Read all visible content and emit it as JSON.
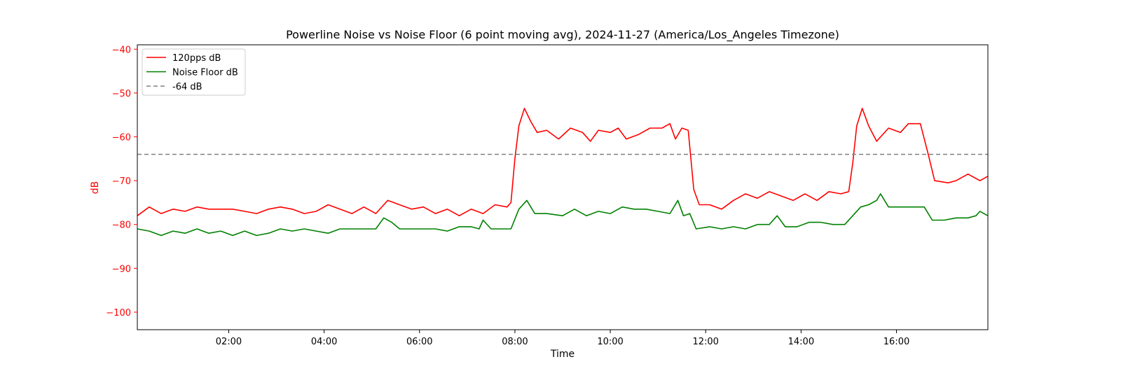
{
  "chart_data": {
    "type": "line",
    "title": "Powerline Noise vs Noise Floor (6 point moving avg), 2024-11-27 (America/Los_Angeles Timezone)",
    "xlabel": "Time",
    "ylabel": "dB",
    "xlim": [
      "00:05",
      "17:55"
    ],
    "ylim": [
      -104,
      -39
    ],
    "x_ticks": [
      "02:00",
      "04:00",
      "06:00",
      "08:00",
      "10:00",
      "12:00",
      "14:00",
      "16:00"
    ],
    "y_ticks": [
      "−40",
      "−50",
      "−60",
      "−70",
      "−80",
      "−90",
      "−100"
    ],
    "grid": false,
    "legend_position": "top-left",
    "colors": {
      "axis_y": "#ff0000",
      "threshold": "#808080"
    },
    "series": [
      {
        "name": "120pps dB",
        "color": "#ff0000",
        "style": "solid",
        "points": [
          [
            "00:05",
            -78.0
          ],
          [
            "00:20",
            -76.0
          ],
          [
            "00:35",
            -77.5
          ],
          [
            "00:50",
            -76.5
          ],
          [
            "01:05",
            -77.0
          ],
          [
            "01:20",
            -76.0
          ],
          [
            "01:35",
            -76.5
          ],
          [
            "01:50",
            -76.5
          ],
          [
            "02:05",
            -76.5
          ],
          [
            "02:20",
            -77.0
          ],
          [
            "02:35",
            -77.5
          ],
          [
            "02:50",
            -76.5
          ],
          [
            "03:05",
            -76.0
          ],
          [
            "03:20",
            -76.5
          ],
          [
            "03:35",
            -77.5
          ],
          [
            "03:50",
            -77.0
          ],
          [
            "04:05",
            -75.5
          ],
          [
            "04:20",
            -76.5
          ],
          [
            "04:35",
            -77.5
          ],
          [
            "04:50",
            -76.0
          ],
          [
            "05:05",
            -77.5
          ],
          [
            "05:20",
            -74.5
          ],
          [
            "05:35",
            -75.5
          ],
          [
            "05:50",
            -76.5
          ],
          [
            "06:05",
            -76.0
          ],
          [
            "06:20",
            -77.5
          ],
          [
            "06:35",
            -76.5
          ],
          [
            "06:50",
            -78.0
          ],
          [
            "07:05",
            -76.5
          ],
          [
            "07:20",
            -77.5
          ],
          [
            "07:35",
            -75.5
          ],
          [
            "07:50",
            -76.0
          ],
          [
            "07:55",
            -75.0
          ],
          [
            "08:00",
            -65.0
          ],
          [
            "08:05",
            -57.5
          ],
          [
            "08:12",
            -53.5
          ],
          [
            "08:20",
            -56.5
          ],
          [
            "08:28",
            -59.0
          ],
          [
            "08:40",
            -58.5
          ],
          [
            "08:55",
            -60.5
          ],
          [
            "09:10",
            -58.0
          ],
          [
            "09:25",
            -59.0
          ],
          [
            "09:35",
            -61.0
          ],
          [
            "09:45",
            -58.5
          ],
          [
            "10:00",
            -59.0
          ],
          [
            "10:10",
            -58.0
          ],
          [
            "10:20",
            -60.5
          ],
          [
            "10:35",
            -59.5
          ],
          [
            "10:50",
            -58.0
          ],
          [
            "11:05",
            -58.0
          ],
          [
            "11:15",
            -57.0
          ],
          [
            "11:22",
            -60.5
          ],
          [
            "11:30",
            -58.0
          ],
          [
            "11:38",
            -58.5
          ],
          [
            "11:45",
            -72.0
          ],
          [
            "11:52",
            -75.5
          ],
          [
            "12:05",
            -75.5
          ],
          [
            "12:20",
            -76.5
          ],
          [
            "12:35",
            -74.5
          ],
          [
            "12:50",
            -73.0
          ],
          [
            "13:05",
            -74.0
          ],
          [
            "13:20",
            -72.5
          ],
          [
            "13:35",
            -73.5
          ],
          [
            "13:50",
            -74.5
          ],
          [
            "14:05",
            -73.0
          ],
          [
            "14:20",
            -74.5
          ],
          [
            "14:35",
            -72.5
          ],
          [
            "14:50",
            -73.0
          ],
          [
            "15:00",
            -72.5
          ],
          [
            "15:05",
            -66.0
          ],
          [
            "15:10",
            -57.5
          ],
          [
            "15:17",
            -53.5
          ],
          [
            "15:25",
            -57.5
          ],
          [
            "15:35",
            -61.0
          ],
          [
            "15:50",
            -58.0
          ],
          [
            "16:05",
            -59.0
          ],
          [
            "16:15",
            -57.0
          ],
          [
            "16:30",
            -57.0
          ],
          [
            "16:40",
            -64.0
          ],
          [
            "16:48",
            -70.0
          ],
          [
            "17:05",
            -70.5
          ],
          [
            "17:15",
            -70.0
          ],
          [
            "17:30",
            -68.5
          ],
          [
            "17:45",
            -70.0
          ],
          [
            "17:55",
            -69.0
          ]
        ]
      },
      {
        "name": "Noise Floor dB",
        "color": "#008000",
        "style": "solid",
        "points": [
          [
            "00:05",
            -81.0
          ],
          [
            "00:20",
            -81.5
          ],
          [
            "00:35",
            -82.5
          ],
          [
            "00:50",
            -81.5
          ],
          [
            "01:05",
            -82.0
          ],
          [
            "01:20",
            -81.0
          ],
          [
            "01:35",
            -82.0
          ],
          [
            "01:50",
            -81.5
          ],
          [
            "02:05",
            -82.5
          ],
          [
            "02:20",
            -81.5
          ],
          [
            "02:35",
            -82.5
          ],
          [
            "02:50",
            -82.0
          ],
          [
            "03:05",
            -81.0
          ],
          [
            "03:20",
            -81.5
          ],
          [
            "03:35",
            -81.0
          ],
          [
            "03:50",
            -81.5
          ],
          [
            "04:05",
            -82.0
          ],
          [
            "04:20",
            -81.0
          ],
          [
            "04:35",
            -81.0
          ],
          [
            "04:50",
            -81.0
          ],
          [
            "05:05",
            -81.0
          ],
          [
            "05:15",
            -78.5
          ],
          [
            "05:25",
            -79.5
          ],
          [
            "05:35",
            -81.0
          ],
          [
            "05:50",
            -81.0
          ],
          [
            "06:05",
            -81.0
          ],
          [
            "06:20",
            -81.0
          ],
          [
            "06:35",
            -81.5
          ],
          [
            "06:50",
            -80.5
          ],
          [
            "07:05",
            -80.5
          ],
          [
            "07:15",
            -81.0
          ],
          [
            "07:20",
            -79.0
          ],
          [
            "07:30",
            -81.0
          ],
          [
            "07:55",
            -81.0
          ],
          [
            "08:05",
            -76.5
          ],
          [
            "08:15",
            -74.5
          ],
          [
            "08:25",
            -77.5
          ],
          [
            "08:40",
            -77.5
          ],
          [
            "09:00",
            -78.0
          ],
          [
            "09:15",
            -76.5
          ],
          [
            "09:30",
            -78.0
          ],
          [
            "09:45",
            -77.0
          ],
          [
            "10:00",
            -77.5
          ],
          [
            "10:15",
            -76.0
          ],
          [
            "10:30",
            -76.5
          ],
          [
            "10:45",
            -76.5
          ],
          [
            "11:00",
            -77.0
          ],
          [
            "11:15",
            -77.5
          ],
          [
            "11:25",
            -74.5
          ],
          [
            "11:32",
            -78.0
          ],
          [
            "11:40",
            -77.5
          ],
          [
            "11:48",
            -81.0
          ],
          [
            "12:05",
            -80.5
          ],
          [
            "12:20",
            -81.0
          ],
          [
            "12:35",
            -80.5
          ],
          [
            "12:50",
            -81.0
          ],
          [
            "13:05",
            -80.0
          ],
          [
            "13:20",
            -80.0
          ],
          [
            "13:30",
            -78.0
          ],
          [
            "13:40",
            -80.5
          ],
          [
            "13:55",
            -80.5
          ],
          [
            "14:10",
            -79.5
          ],
          [
            "14:25",
            -79.5
          ],
          [
            "14:40",
            -80.0
          ],
          [
            "14:55",
            -80.0
          ],
          [
            "15:05",
            -78.0
          ],
          [
            "15:15",
            -76.0
          ],
          [
            "15:25",
            -75.5
          ],
          [
            "15:35",
            -74.5
          ],
          [
            "15:40",
            -73.0
          ],
          [
            "15:50",
            -76.0
          ],
          [
            "16:05",
            -76.0
          ],
          [
            "16:20",
            -76.0
          ],
          [
            "16:35",
            -76.0
          ],
          [
            "16:45",
            -79.0
          ],
          [
            "17:00",
            -79.0
          ],
          [
            "17:15",
            -78.5
          ],
          [
            "17:30",
            -78.5
          ],
          [
            "17:40",
            -78.0
          ],
          [
            "17:45",
            -77.0
          ],
          [
            "17:55",
            -78.0
          ]
        ]
      },
      {
        "name": "-64 dB",
        "color": "#808080",
        "style": "dashed",
        "points": [
          [
            "00:05",
            -64
          ],
          [
            "17:55",
            -64
          ]
        ]
      }
    ]
  }
}
